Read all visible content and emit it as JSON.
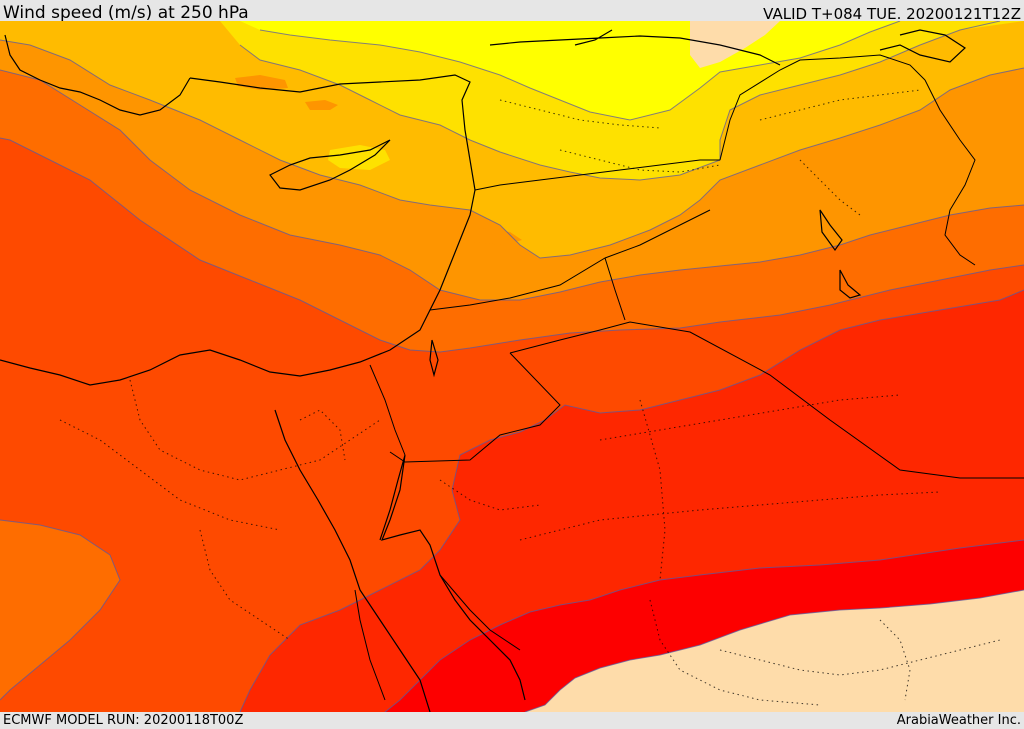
{
  "header": {
    "title": "Wind speed (m/s) at 250 hPa",
    "valid": "VALID T+084 TUE. 20200121T12Z"
  },
  "footer": {
    "model_run": "ECMWF MODEL RUN: 20200118T00Z",
    "credit": "ArabiaWeather Inc."
  },
  "map": {
    "field": "Wind speed at 250 hPa",
    "band_colors": {
      "peach": "#fedcaa",
      "yellow": "#ffff00",
      "gold": "#fee100",
      "amber": "#ffbb00",
      "orange": "#fe9500",
      "dark_orange": "#fe6d00",
      "orange_red": "#fe4a00",
      "red_orange": "#fe2700",
      "red": "#fd0000"
    }
  }
}
